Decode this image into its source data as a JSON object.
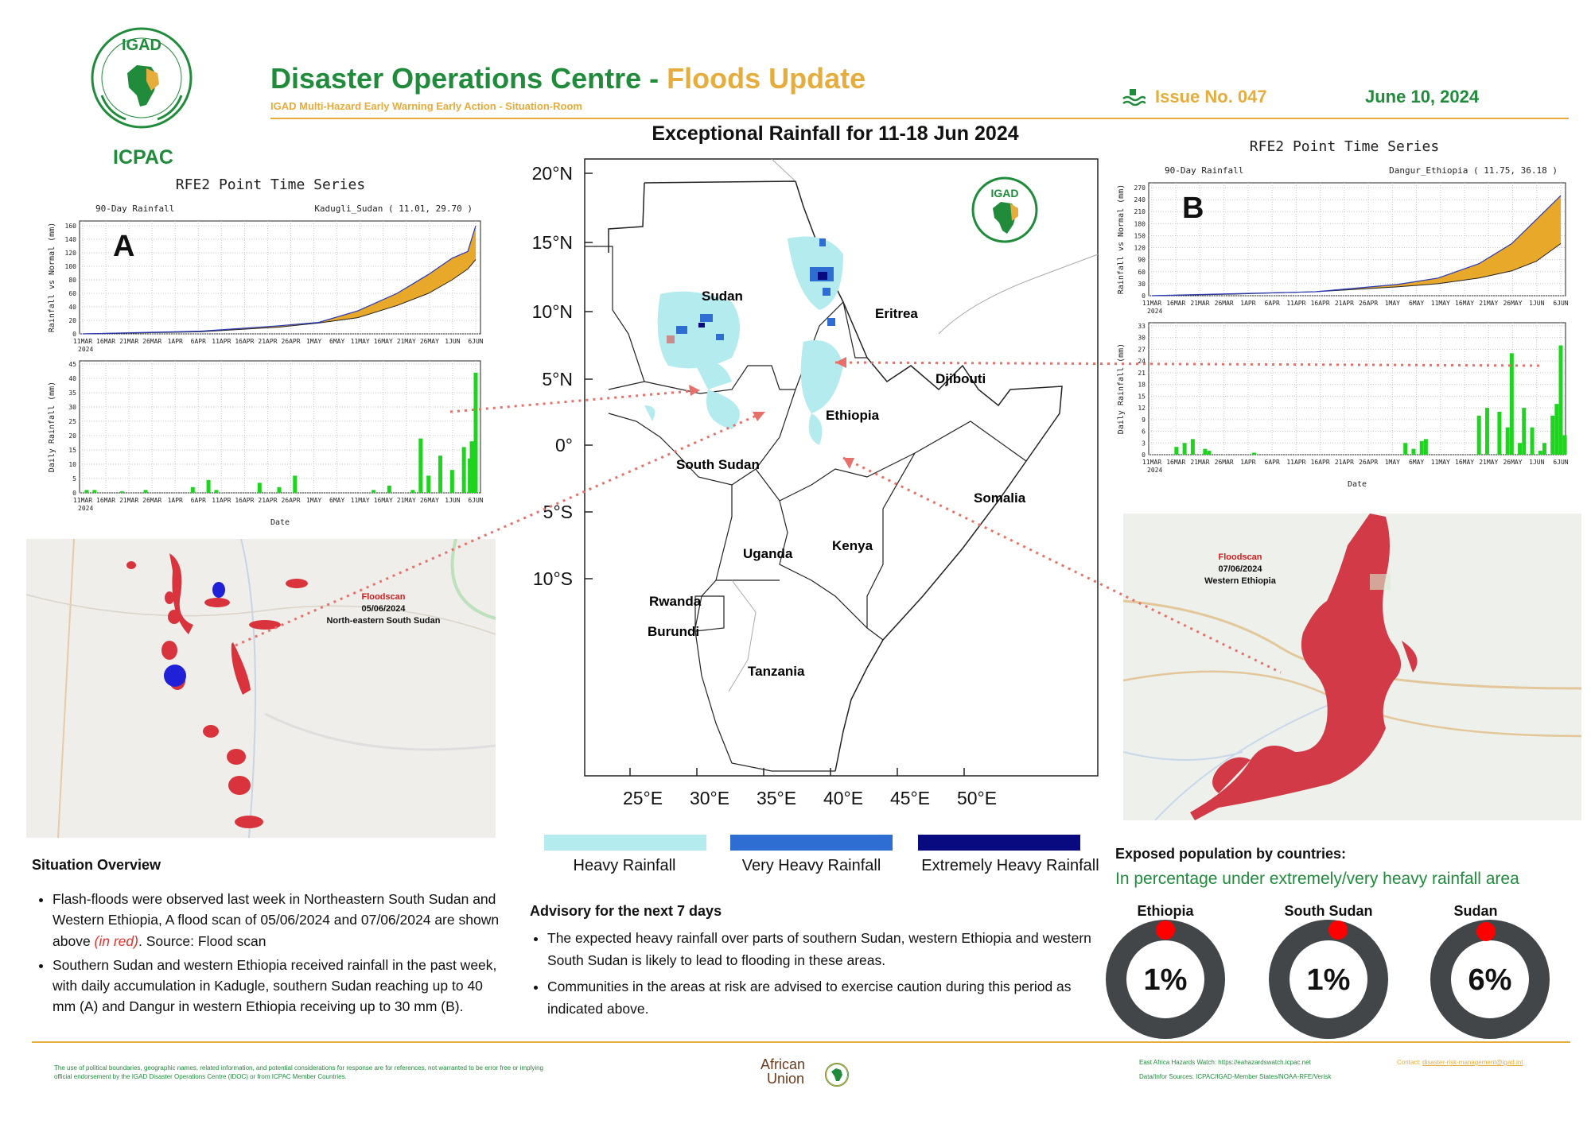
{
  "header": {
    "logo_text": "IGAD",
    "logo_caption": "ICPAC",
    "title_main": "Disaster Operations Centre - ",
    "title_highlight": "Floods Update",
    "subtitle": "IGAD Multi-Hazard Early Warning Early Action - Situation-Room",
    "issue": "Issue No. 047",
    "date": "June 10, 2024",
    "colors": {
      "green": "#1f8b3b",
      "gold": "#e6ac3c"
    }
  },
  "map": {
    "title": "Exceptional Rainfall for 11-18 Jun 2024",
    "logo_text": "IGAD",
    "lat_labels": [
      "20°N",
      "15°N",
      "10°N",
      "5°N",
      "0°",
      "5°S",
      "10°S"
    ],
    "lon_labels": [
      "25°E",
      "30°E",
      "35°E",
      "40°E",
      "45°E",
      "50°E"
    ],
    "countries": [
      "Sudan",
      "Eritrea",
      "Djibouti",
      "Ethiopia",
      "South Sudan",
      "Somalia",
      "Kenya",
      "Uganda",
      "Rwanda",
      "Burundi",
      "Tanzania"
    ],
    "legend": [
      {
        "label": "Heavy Rainfall",
        "color": "#b3ebef"
      },
      {
        "label": "Very Heavy Rainfall",
        "color": "#2e6dd1"
      },
      {
        "label": "Extremely Heavy Rainfall",
        "color": "#0a0a80"
      }
    ]
  },
  "chart_a": {
    "heading": "RFE2 Point Time Series",
    "panel_letter": "A",
    "top_label": "90-Day Rainfall",
    "location": "Kadugli_Sudan ( 11.01, 29.70 )",
    "ylabel_top": "Rainfall vs Normal (mm)",
    "ylabel_bottom": "Daily Rainfall (mm)",
    "xlabel": "Date",
    "x_ticks": [
      "11MAR",
      "16MAR",
      "21MAR",
      "26MAR",
      "1APR",
      "6APR",
      "11APR",
      "16APR",
      "21APR",
      "26APR",
      "1MAY",
      "6MAY",
      "11MAY",
      "16MAY",
      "21MAY",
      "26MAY",
      "1JUN",
      "6JUN"
    ],
    "year": "2024",
    "top_y_ticks": [
      0,
      20,
      40,
      60,
      80,
      100,
      120,
      140,
      160
    ],
    "bottom_y_ticks": [
      0,
      5,
      10,
      15,
      20,
      25,
      30,
      35,
      40,
      45
    ]
  },
  "chart_b": {
    "heading": "RFE2 Point Time Series",
    "panel_letter": "B",
    "top_label": "90-Day Rainfall",
    "location": "Dangur_Ethiopia ( 11.75, 36.18 )",
    "ylabel_top": "Rainfall vs Normal (mm)",
    "ylabel_bottom": "Daily Rainfall (mm)",
    "xlabel": "Date",
    "x_ticks": [
      "11MAR",
      "16MAR",
      "21MAR",
      "26MAR",
      "1APR",
      "6APR",
      "11APR",
      "16APR",
      "21APR",
      "26APR",
      "1MAY",
      "6MAY",
      "11MAY",
      "16MAY",
      "21MAY",
      "26MAY",
      "1JUN",
      "6JUN"
    ],
    "year": "2024",
    "top_y_ticks": [
      0,
      30,
      60,
      90,
      120,
      150,
      180,
      210,
      240,
      270
    ],
    "bottom_y_ticks": [
      0,
      3,
      6,
      9,
      12,
      15,
      18,
      21,
      24,
      27,
      30,
      33
    ]
  },
  "floodscan_a": {
    "label": "Floodscan",
    "date": "05/06/2024",
    "area": "North-eastern South Sudan"
  },
  "floodscan_b": {
    "label": "Floodscan",
    "date": "07/06/2024",
    "area": "Western Ethiopia"
  },
  "situation": {
    "heading": "Situation Overview",
    "bullet1_pre": "Flash-floods were observed last week in Northeastern South Sudan and Western Ethiopia, A flood scan of 05/06/2024 and 07/06/2024 are shown above ",
    "bullet1_red": "(in red)",
    "bullet1_post": ". Source: Flood scan",
    "bullet2": "Southern Sudan and western Ethiopia received rainfall in the past week, with daily accumulation in Kadugle, southern Sudan reaching up to 40 mm (A) and Dangur in western Ethiopia receiving up to 30 mm (B)."
  },
  "advisory": {
    "heading": "Advisory for the next 7 days",
    "bullet1": "The expected heavy rainfall over parts of southern Sudan, western Ethiopia and western South Sudan is likely to lead to flooding in these areas.",
    "bullet2": "Communities in the areas at risk are advised to exercise caution during this period as indicated above."
  },
  "exposed": {
    "heading": "Exposed population by countries:",
    "subheading": "In percentage under extremely/very heavy rainfall area",
    "items": [
      {
        "country": "Ethiopia",
        "value": "1%"
      },
      {
        "country": "South Sudan",
        "value": "1%"
      },
      {
        "country": "Sudan",
        "value": "6%"
      }
    ]
  },
  "footer": {
    "disclaimer": "The use of political boundaries, geographic names, related information, and potential considerations for response are for references, not warranted to be error free or implying official endorsement by the IGAD Disaster Operations Centre (IDOC) or from ICPAC Member Countries.",
    "au_line1": "African",
    "au_line2": "Union",
    "watch": "East Africa Hazards Watch: https://eahazardswatch.icpac.net",
    "sources": "Data/Infor Sources: ICPAC/IGAD-Member States/NOAA-RFE/Verisk",
    "contact_label": "Contact: ",
    "contact_email": "disaster-risk-management@igad.int"
  }
}
